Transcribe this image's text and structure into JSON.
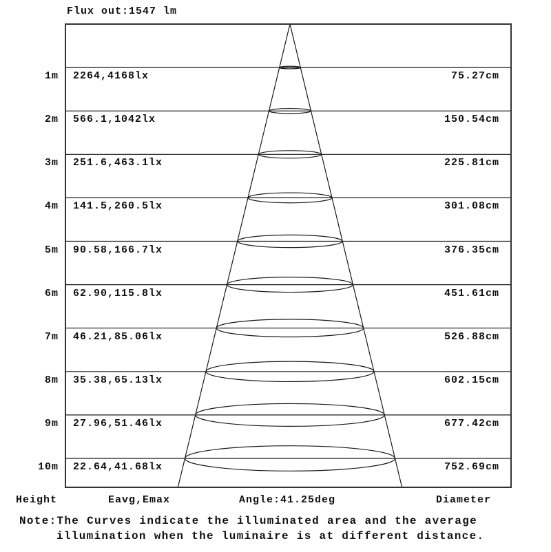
{
  "flux_label": "Flux out:1547 lm",
  "footer": {
    "height": "Height",
    "eavg_emax": "Eavg,Emax",
    "angle": "Angle:41.25deg",
    "diameter": "Diameter"
  },
  "note": {
    "line1": "Note:The Curves indicate the illuminated area and the average",
    "line2": "illumination when the luminaire is at different distance."
  },
  "colors": {
    "background": "#ffffff",
    "line": "#1a1a1a",
    "border": "#333333",
    "text": "#111111"
  },
  "chart_data": {
    "type": "table",
    "title": "Flux out:1547 lm",
    "flux_out_lm": 1547,
    "beam_angle_deg": 41.25,
    "columns": [
      "Height",
      "Eavg,Emax",
      "Diameter"
    ],
    "rows": [
      {
        "height": "1m",
        "eavg_emax": "2264,4168lx",
        "diameter": "75.27cm"
      },
      {
        "height": "2m",
        "eavg_emax": "566.1,1042lx",
        "diameter": "150.54cm"
      },
      {
        "height": "3m",
        "eavg_emax": "251.6,463.1lx",
        "diameter": "225.81cm"
      },
      {
        "height": "4m",
        "eavg_emax": "141.5,260.5lx",
        "diameter": "301.08cm"
      },
      {
        "height": "5m",
        "eavg_emax": "90.58,166.7lx",
        "diameter": "376.35cm"
      },
      {
        "height": "6m",
        "eavg_emax": "62.90,115.8lx",
        "diameter": "451.61cm"
      },
      {
        "height": "7m",
        "eavg_emax": "46.21,85.06lx",
        "diameter": "526.88cm"
      },
      {
        "height": "8m",
        "eavg_emax": "35.38,65.13lx",
        "diameter": "602.15cm"
      },
      {
        "height": "9m",
        "eavg_emax": "27.96,51.46lx",
        "diameter": "677.42cm"
      },
      {
        "height": "10m",
        "eavg_emax": "22.64,41.68lx",
        "diameter": "752.69cm"
      }
    ],
    "note": "The Curves indicate the illuminated area and the average illumination when the luminaire is at different distance."
  }
}
